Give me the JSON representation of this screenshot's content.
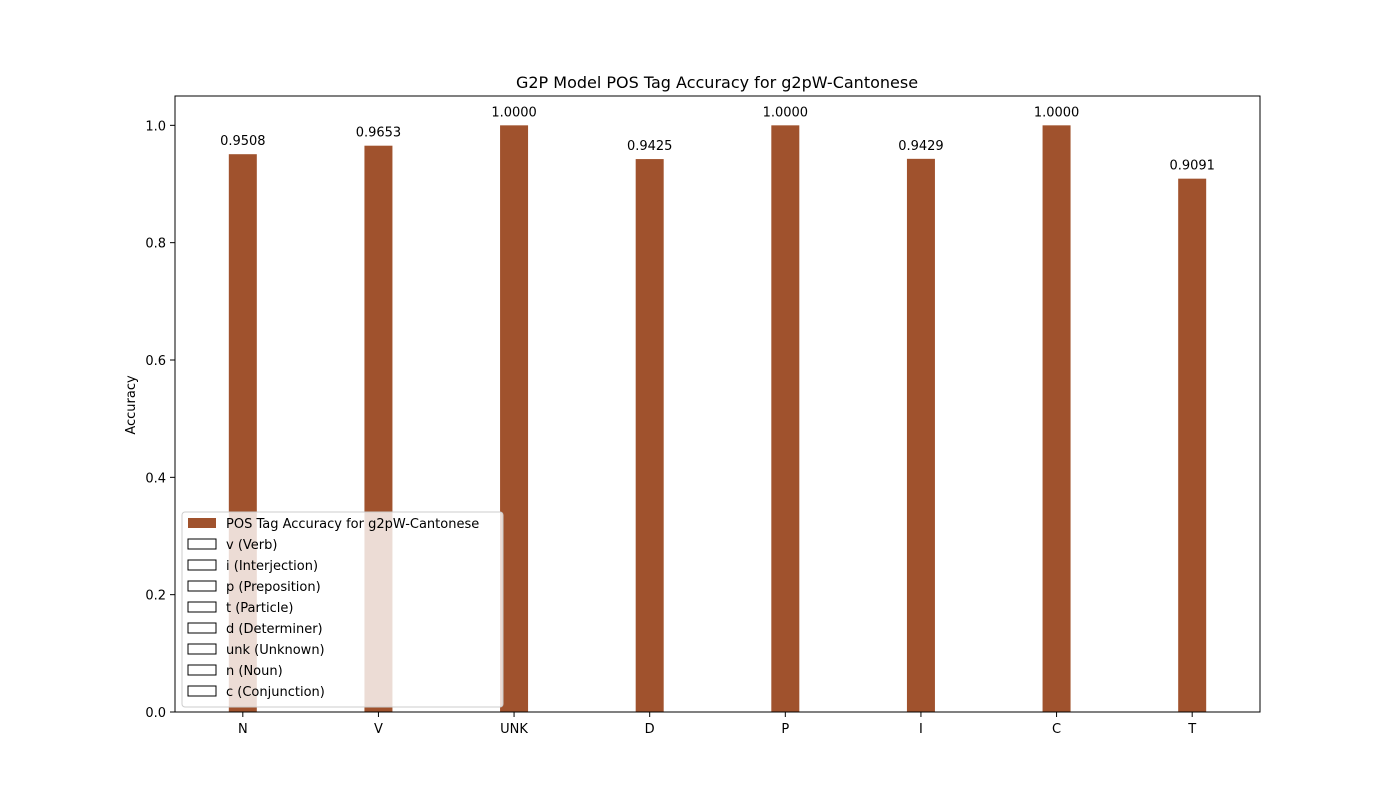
{
  "chart_data": {
    "type": "bar",
    "title": "G2P Model POS Tag Accuracy for g2pW-Cantonese",
    "xlabel": "",
    "ylabel": "Accuracy",
    "categories": [
      "N",
      "V",
      "UNK",
      "D",
      "P",
      "I",
      "C",
      "T"
    ],
    "series": [
      {
        "name": "POS Tag Accuracy for g2pW-Cantonese",
        "values": [
          0.9508,
          0.9653,
          1.0,
          0.9425,
          1.0,
          0.9429,
          1.0,
          0.9091
        ],
        "color": "#a0522d"
      }
    ],
    "data_labels": [
      "0.9508",
      "0.9653",
      "1.0000",
      "0.9425",
      "1.0000",
      "0.9429",
      "1.0000",
      "0.9091"
    ],
    "ylim": [
      0,
      1.05
    ],
    "yticks": [
      "0.0",
      "0.2",
      "0.4",
      "0.6",
      "0.8",
      "1.0"
    ],
    "grid": false,
    "legend": {
      "placement": "lower-left",
      "entries": [
        "POS Tag Accuracy for g2pW-Cantonese",
        "v (Verb)",
        "i (Interjection)",
        "p (Preposition)",
        "t (Particle)",
        "d (Determiner)",
        "unk (Unknown)",
        "n (Noun)",
        "c (Conjunction)"
      ]
    }
  }
}
